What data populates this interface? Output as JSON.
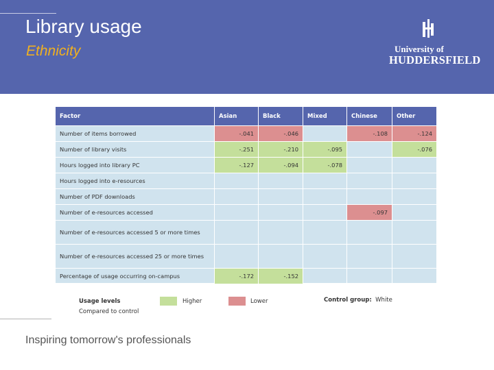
{
  "header": {
    "title": "Library usage",
    "subtitle": "Ethnicity",
    "logo_line1": "University of",
    "logo_line2": "HUDDERSFIELD"
  },
  "table": {
    "columns": [
      "Factor",
      "Asian",
      "Black",
      "Mixed",
      "Chinese",
      "Other"
    ],
    "rows": [
      {
        "factor": "Number of items borrowed",
        "cells": [
          {
            "value": "-.041",
            "level": "lower"
          },
          {
            "value": "-.046",
            "level": "lower"
          },
          {
            "value": "",
            "level": ""
          },
          {
            "value": "-.108",
            "level": "lower"
          },
          {
            "value": "-.124",
            "level": "lower"
          }
        ]
      },
      {
        "factor": "Number of library visits",
        "cells": [
          {
            "value": "-.251",
            "level": "higher"
          },
          {
            "value": "-.210",
            "level": "higher"
          },
          {
            "value": "-.095",
            "level": "higher"
          },
          {
            "value": "",
            "level": ""
          },
          {
            "value": "-.076",
            "level": "higher"
          }
        ]
      },
      {
        "factor": "Hours logged into library PC",
        "cells": [
          {
            "value": "-.127",
            "level": "higher"
          },
          {
            "value": "-.094",
            "level": "higher"
          },
          {
            "value": "-.078",
            "level": "higher"
          },
          {
            "value": "",
            "level": ""
          },
          {
            "value": "",
            "level": ""
          }
        ]
      },
      {
        "factor": "Hours logged into e-resources",
        "cells": [
          {
            "value": "",
            "level": ""
          },
          {
            "value": "",
            "level": ""
          },
          {
            "value": "",
            "level": ""
          },
          {
            "value": "",
            "level": ""
          },
          {
            "value": "",
            "level": ""
          }
        ]
      },
      {
        "factor": "Number of PDF downloads",
        "cells": [
          {
            "value": "",
            "level": ""
          },
          {
            "value": "",
            "level": ""
          },
          {
            "value": "",
            "level": ""
          },
          {
            "value": "",
            "level": ""
          },
          {
            "value": "",
            "level": ""
          }
        ]
      },
      {
        "factor": "Number of e-resources accessed",
        "cells": [
          {
            "value": "",
            "level": ""
          },
          {
            "value": "",
            "level": ""
          },
          {
            "value": "",
            "level": ""
          },
          {
            "value": "-.097",
            "level": "lower"
          },
          {
            "value": "",
            "level": ""
          }
        ]
      },
      {
        "factor": "Number of e-resources accessed 5 or more times",
        "cells": [
          {
            "value": "",
            "level": ""
          },
          {
            "value": "",
            "level": ""
          },
          {
            "value": "",
            "level": ""
          },
          {
            "value": "",
            "level": ""
          },
          {
            "value": "",
            "level": ""
          }
        ]
      },
      {
        "factor": "Number of e-resources accessed 25 or more times",
        "cells": [
          {
            "value": "",
            "level": ""
          },
          {
            "value": "",
            "level": ""
          },
          {
            "value": "",
            "level": ""
          },
          {
            "value": "",
            "level": ""
          },
          {
            "value": "",
            "level": ""
          }
        ]
      },
      {
        "factor": "Percentage of usage occurring on-campus",
        "cells": [
          {
            "value": "-.172",
            "level": "higher"
          },
          {
            "value": "-.152",
            "level": "higher"
          },
          {
            "value": "",
            "level": ""
          },
          {
            "value": "",
            "level": ""
          },
          {
            "value": "",
            "level": ""
          }
        ]
      }
    ]
  },
  "legend": {
    "label": "Usage levels",
    "sub": "Compared to control",
    "higher": "Higher",
    "lower": "Lower",
    "control_label": "Control group:",
    "control_value": "White",
    "colors": {
      "higher": "#c4df9b",
      "lower": "#dc8f90"
    }
  },
  "footer": {
    "tagline": "Inspiring tomorrow's professionals"
  }
}
